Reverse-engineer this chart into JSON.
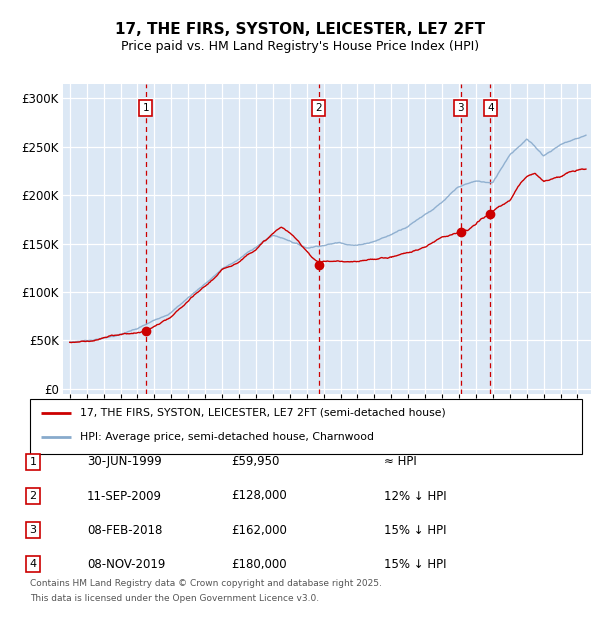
{
  "title_line1": "17, THE FIRS, SYSTON, LEICESTER, LE7 2FT",
  "title_line2": "Price paid vs. HM Land Registry's House Price Index (HPI)",
  "ylabel_ticks": [
    "£0",
    "£50K",
    "£100K",
    "£150K",
    "£200K",
    "£250K",
    "£300K"
  ],
  "ytick_vals": [
    0,
    50000,
    100000,
    150000,
    200000,
    250000,
    300000
  ],
  "ylim": [
    -5000,
    315000
  ],
  "xlim_start": 1994.6,
  "xlim_end": 2025.8,
  "legend_entries": [
    "17, THE FIRS, SYSTON, LEICESTER, LE7 2FT (semi-detached house)",
    "HPI: Average price, semi-detached house, Charnwood"
  ],
  "legend_colors": [
    "#cc0000",
    "#88aacc"
  ],
  "transactions": [
    {
      "num": 1,
      "date": "30-JUN-1999",
      "year": 1999.5,
      "price": 59950,
      "hpi_rel": "≈ HPI"
    },
    {
      "num": 2,
      "date": "11-SEP-2009",
      "year": 2009.7,
      "price": 128000,
      "hpi_rel": "12% ↓ HPI"
    },
    {
      "num": 3,
      "date": "08-FEB-2018",
      "year": 2018.1,
      "price": 162000,
      "hpi_rel": "15% ↓ HPI"
    },
    {
      "num": 4,
      "date": "08-NOV-2019",
      "year": 2019.85,
      "price": 180000,
      "hpi_rel": "15% ↓ HPI"
    }
  ],
  "plot_bg_color": "#dce8f5",
  "grid_color": "#ffffff",
  "footnote_line1": "Contains HM Land Registry data © Crown copyright and database right 2025.",
  "footnote_line2": "This data is licensed under the Open Government Licence v3.0."
}
